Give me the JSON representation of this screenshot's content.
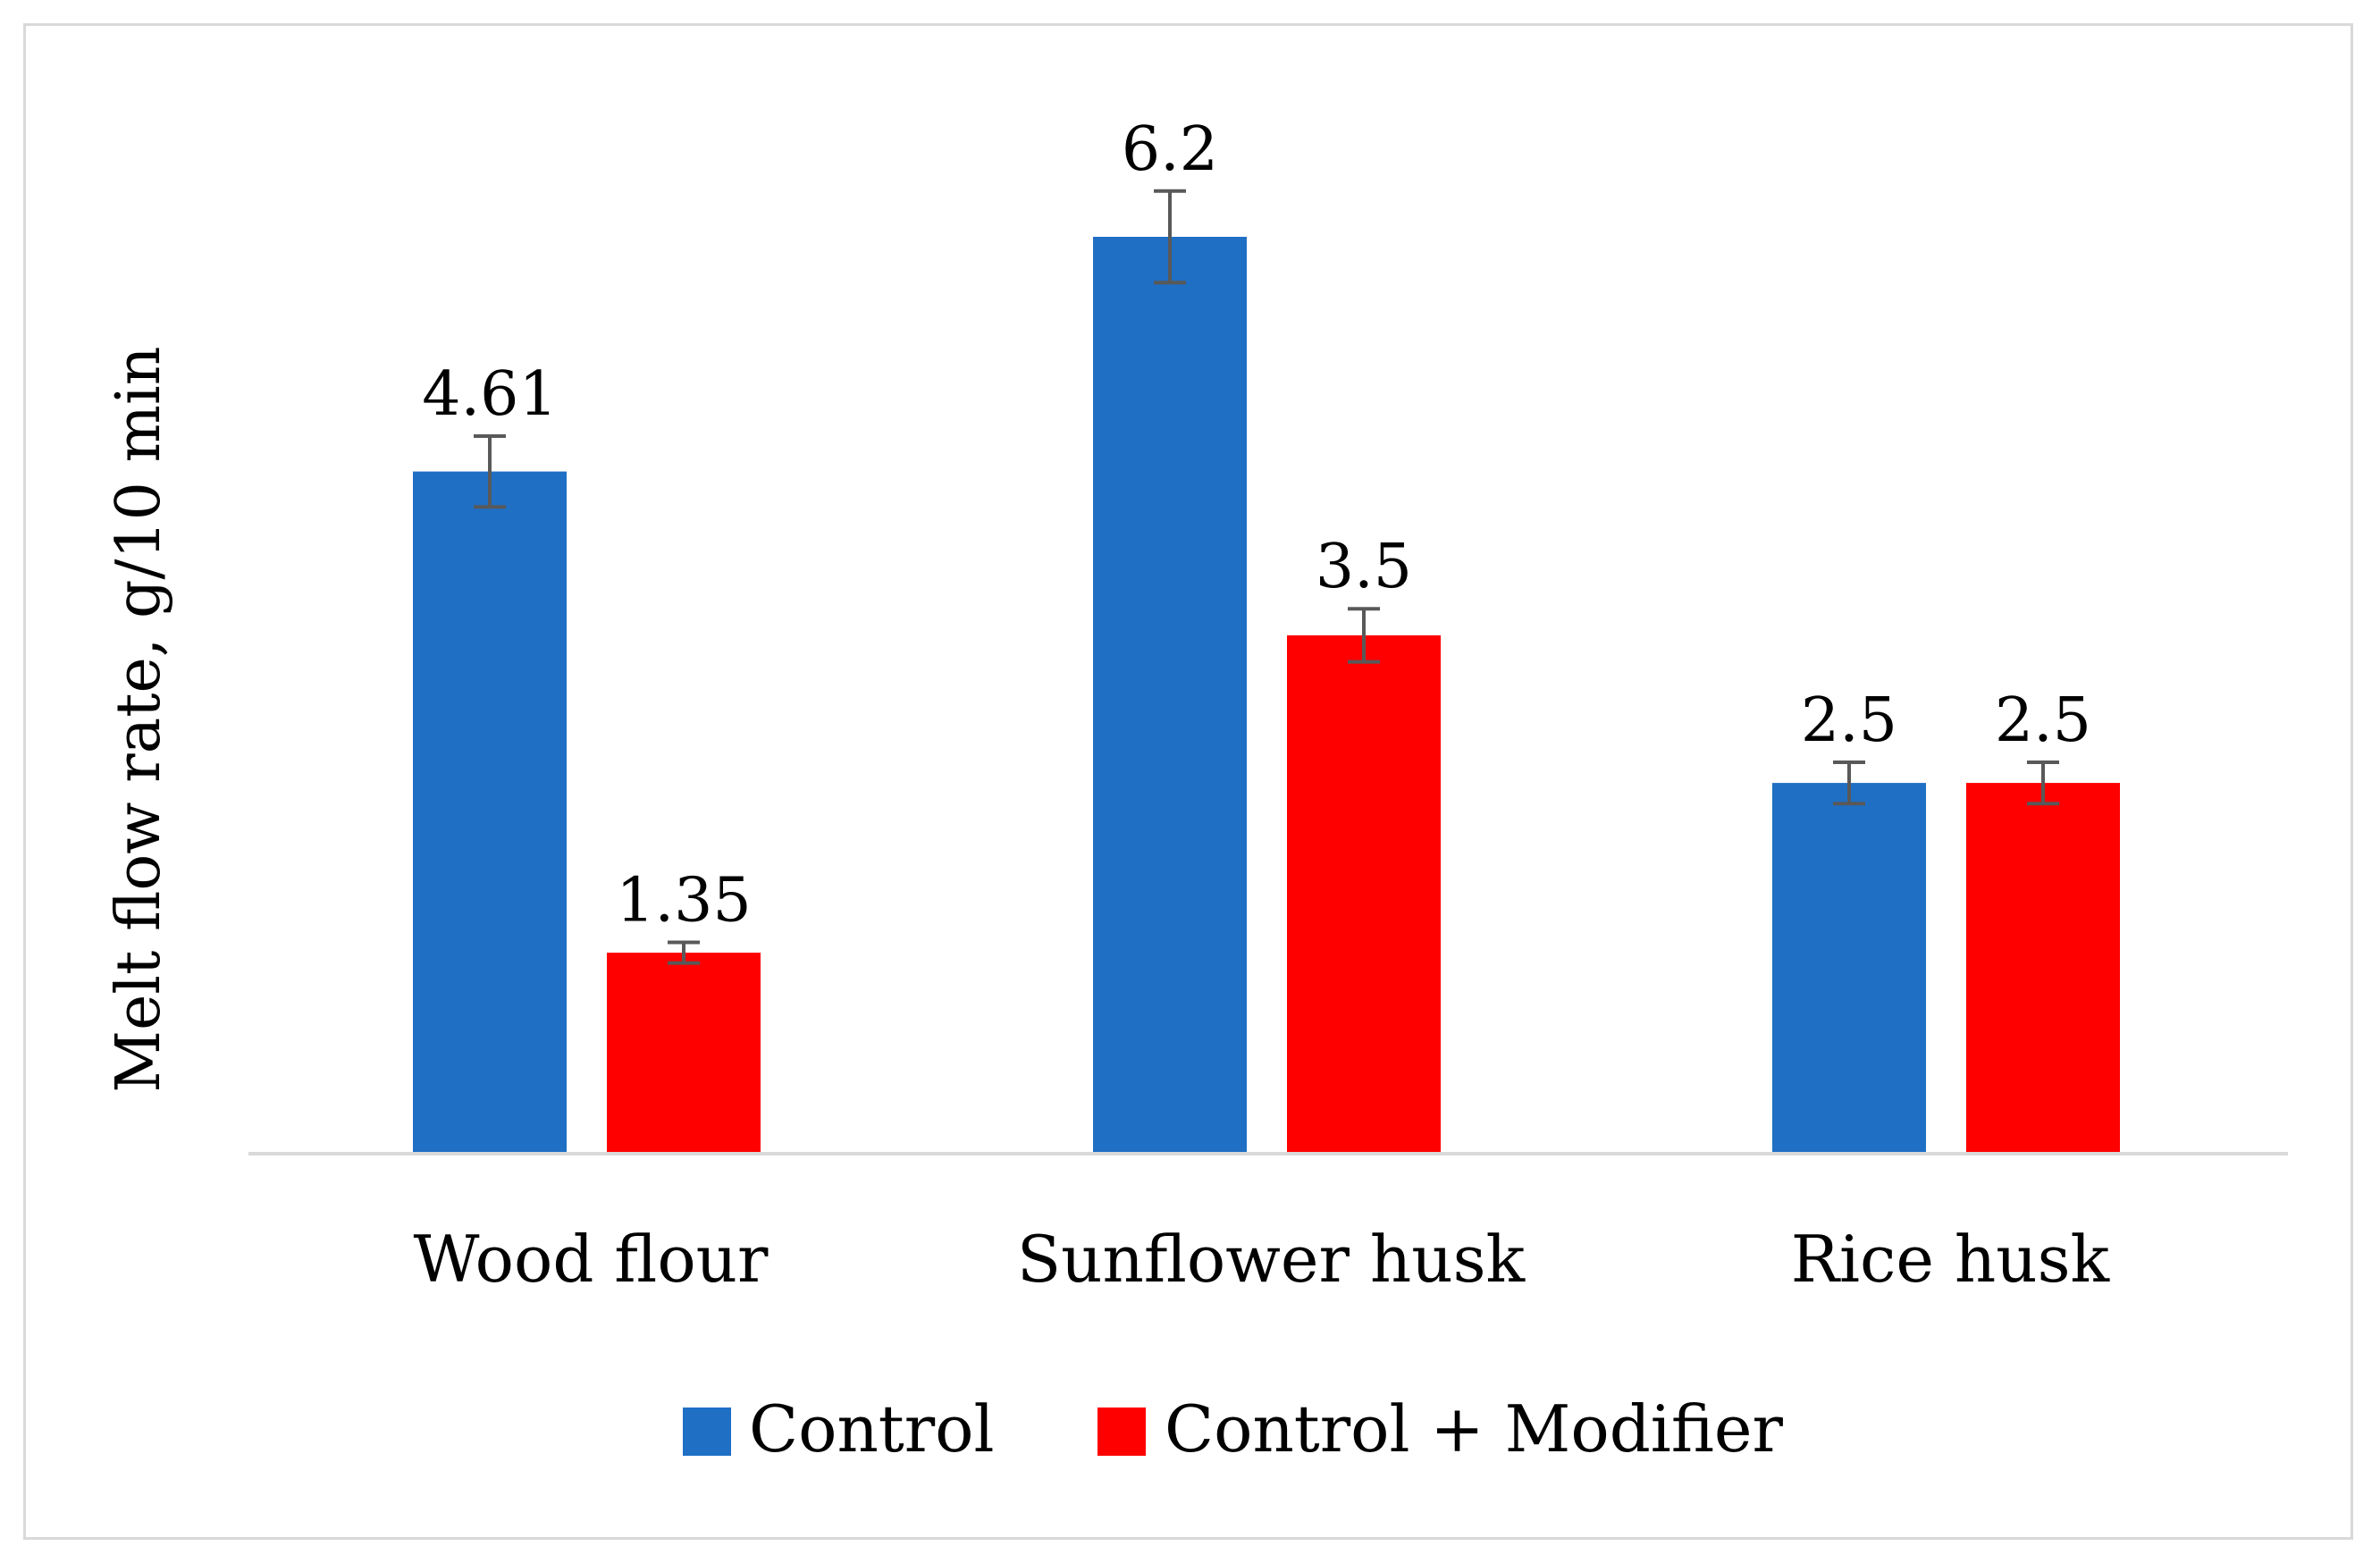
{
  "chart_data": {
    "type": "bar",
    "title": "",
    "xlabel": "",
    "ylabel": "Melt flow rate, g/10 min",
    "categories": [
      "Wood flour",
      "Sunflower husk",
      "Rice husk"
    ],
    "series": [
      {
        "name": "Control",
        "color": "#1f6fc5",
        "values": [
          4.61,
          6.2,
          2.5
        ],
        "labels": [
          "4.61",
          "6.2",
          "2.5"
        ],
        "errors": [
          0.24,
          0.31,
          0.14
        ]
      },
      {
        "name": "Control + Modifier",
        "color": "#ff0000",
        "values": [
          1.35,
          3.5,
          2.5
        ],
        "labels": [
          "1.35",
          "3.5",
          "2.5"
        ],
        "errors": [
          0.07,
          0.18,
          0.14
        ]
      }
    ],
    "ylim": [
      0,
      7.0
    ],
    "grid": false,
    "legend": "bottom-center",
    "axis_color": "#d9d9d9",
    "error_bar_color": "#595959"
  }
}
